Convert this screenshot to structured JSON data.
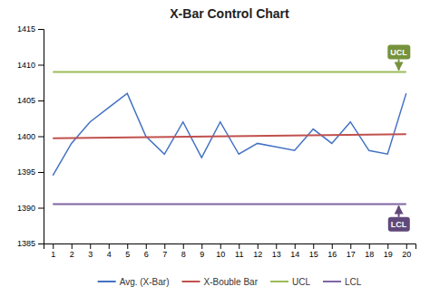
{
  "chart_data": {
    "type": "line",
    "title": "X-Bar Control Chart",
    "series": [
      {
        "name": "Avg. (X-Bar)",
        "color": "#4472C4",
        "x": [
          1,
          2,
          3,
          4,
          5,
          6,
          7,
          8,
          9,
          10,
          11,
          12,
          13,
          14,
          15,
          16,
          17,
          18,
          19,
          20
        ],
        "values": [
          1394.5,
          1399,
          1402,
          1404,
          1406,
          1400,
          1397.5,
          1402,
          1397,
          1402,
          1397.5,
          1399,
          1398.5,
          1398,
          1401,
          1399,
          1402,
          1398,
          1397.5,
          1406
        ]
      },
      {
        "name": "X-Bouble Bar",
        "color": "#C0504D",
        "x": [
          1,
          20
        ],
        "values": [
          1399.7,
          1400.3
        ]
      },
      {
        "name": "UCL",
        "color": "#9BBB59",
        "x": [
          1,
          20
        ],
        "values": [
          1409,
          1409
        ]
      },
      {
        "name": "LCL",
        "color": "#8064A2",
        "x": [
          1,
          20
        ],
        "values": [
          1390.5,
          1390.5
        ]
      }
    ],
    "annotations": [
      {
        "text": "UCL",
        "x": 19.6,
        "y": 1409,
        "color": "#76933C"
      },
      {
        "text": "LCL",
        "x": 19.6,
        "y": 1390.5,
        "color": "#60497A"
      }
    ],
    "xlim": [
      0.5,
      20.5
    ],
    "xticks": [
      1,
      2,
      3,
      4,
      5,
      6,
      7,
      8,
      9,
      10,
      11,
      12,
      13,
      14,
      15,
      16,
      17,
      18,
      19,
      20
    ],
    "ylim": [
      1385,
      1415
    ],
    "yticks": [
      1385,
      1390,
      1395,
      1400,
      1405,
      1410,
      1415
    ],
    "grid": false,
    "legend": "bottom"
  }
}
